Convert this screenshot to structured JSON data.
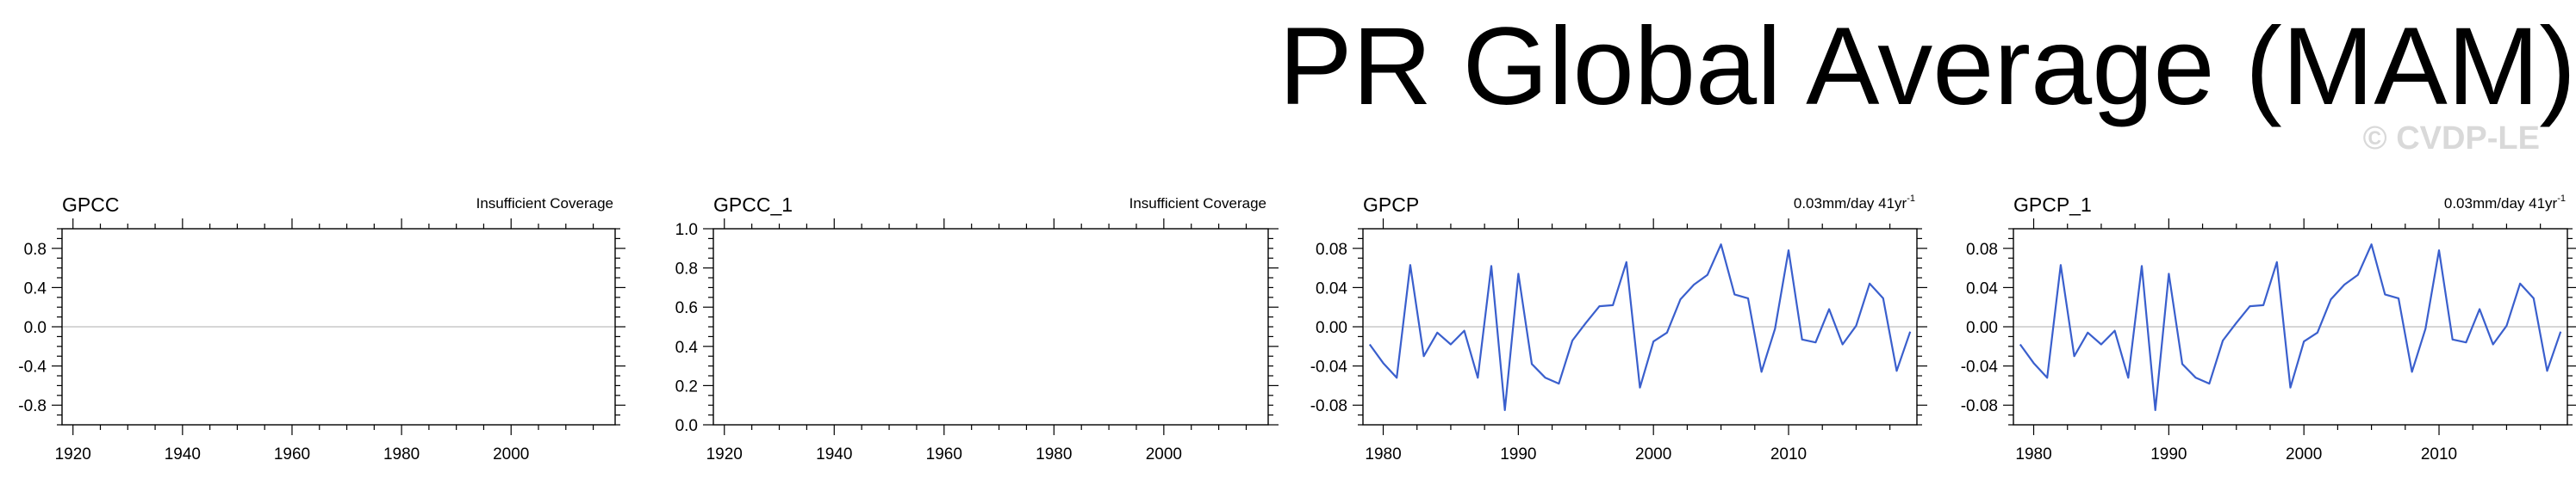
{
  "page": {
    "title": "PR Global Average (MAM)",
    "watermark": "© CVDP-LE"
  },
  "colors": {
    "line": "#3a5fcd",
    "zero_line": "#c8c8c8",
    "axis": "#000000"
  },
  "chart_data": [
    {
      "type": "line",
      "title": "GPCC",
      "annotation": "Insufficient Coverage",
      "xlim": [
        1918,
        2019
      ],
      "ylim": [
        -1.0,
        1.0
      ],
      "x_ticks": [
        1920,
        1940,
        1960,
        1980,
        2000
      ],
      "y_ticks": [
        0.8,
        0.4,
        0.0,
        -0.4,
        -0.8
      ],
      "y_tick_labels": [
        "0.8",
        "0.4",
        "0.0",
        "-0.4",
        "-0.8"
      ],
      "zero_line": true,
      "series": []
    },
    {
      "type": "line",
      "title": "GPCC_1",
      "annotation": "Insufficient Coverage",
      "xlim": [
        1918,
        2019
      ],
      "ylim": [
        0.0,
        1.0
      ],
      "x_ticks": [
        1920,
        1940,
        1960,
        1980,
        2000
      ],
      "y_ticks": [
        1.0,
        0.8,
        0.6,
        0.4,
        0.2,
        0.0
      ],
      "y_tick_labels": [
        "1.0",
        "0.8",
        "0.6",
        "0.4",
        "0.2",
        "0.0"
      ],
      "zero_line": false,
      "series": []
    },
    {
      "type": "line",
      "title": "GPCP",
      "annotation": "0.03mm/day 41yr",
      "annotation_sup": "-1",
      "xlim": [
        1978.5,
        2019.5
      ],
      "ylim": [
        -0.1,
        0.1
      ],
      "x_ticks": [
        1980,
        1990,
        2000,
        2010
      ],
      "y_ticks": [
        0.08,
        0.04,
        0.0,
        -0.04,
        -0.08
      ],
      "y_tick_labels": [
        "0.08",
        "0.04",
        "0.00",
        "-0.04",
        "-0.08"
      ],
      "zero_line": true,
      "series": [
        {
          "x": [
            1979,
            1980,
            1981,
            1982,
            1983,
            1984,
            1985,
            1986,
            1987,
            1988,
            1989,
            1990,
            1991,
            1992,
            1993,
            1994,
            1995,
            1996,
            1997,
            1998,
            1999,
            2000,
            2001,
            2002,
            2003,
            2004,
            2005,
            2006,
            2007,
            2008,
            2009,
            2010,
            2011,
            2012,
            2013,
            2014,
            2015,
            2016,
            2017,
            2018,
            2019
          ],
          "y": [
            -0.018,
            -0.037,
            -0.052,
            0.063,
            -0.03,
            -0.006,
            -0.018,
            -0.004,
            -0.052,
            0.062,
            -0.085,
            0.054,
            -0.038,
            -0.052,
            -0.058,
            -0.014,
            0.004,
            0.021,
            0.022,
            0.066,
            -0.062,
            -0.015,
            -0.006,
            0.028,
            0.043,
            0.053,
            0.084,
            0.033,
            0.029,
            -0.046,
            -0.002,
            0.078,
            -0.013,
            -0.016,
            0.018,
            -0.018,
            0.001,
            0.044,
            0.029,
            -0.045,
            -0.005
          ]
        }
      ]
    },
    {
      "type": "line",
      "title": "GPCP_1",
      "annotation": "0.03mm/day 41yr",
      "annotation_sup": "-1",
      "xlim": [
        1978.5,
        2019.5
      ],
      "ylim": [
        -0.1,
        0.1
      ],
      "x_ticks": [
        1980,
        1990,
        2000,
        2010
      ],
      "y_ticks": [
        0.08,
        0.04,
        0.0,
        -0.04,
        -0.08
      ],
      "y_tick_labels": [
        "0.08",
        "0.04",
        "0.00",
        "-0.04",
        "-0.08"
      ],
      "zero_line": true,
      "series": [
        {
          "x": [
            1979,
            1980,
            1981,
            1982,
            1983,
            1984,
            1985,
            1986,
            1987,
            1988,
            1989,
            1990,
            1991,
            1992,
            1993,
            1994,
            1995,
            1996,
            1997,
            1998,
            1999,
            2000,
            2001,
            2002,
            2003,
            2004,
            2005,
            2006,
            2007,
            2008,
            2009,
            2010,
            2011,
            2012,
            2013,
            2014,
            2015,
            2016,
            2017,
            2018,
            2019
          ],
          "y": [
            -0.018,
            -0.037,
            -0.052,
            0.063,
            -0.03,
            -0.006,
            -0.018,
            -0.004,
            -0.052,
            0.062,
            -0.085,
            0.054,
            -0.038,
            -0.052,
            -0.058,
            -0.014,
            0.004,
            0.021,
            0.022,
            0.066,
            -0.062,
            -0.015,
            -0.006,
            0.028,
            0.043,
            0.053,
            0.084,
            0.033,
            0.029,
            -0.046,
            -0.002,
            0.078,
            -0.013,
            -0.016,
            0.018,
            -0.018,
            0.001,
            0.044,
            0.029,
            -0.045,
            -0.005
          ]
        }
      ]
    }
  ]
}
